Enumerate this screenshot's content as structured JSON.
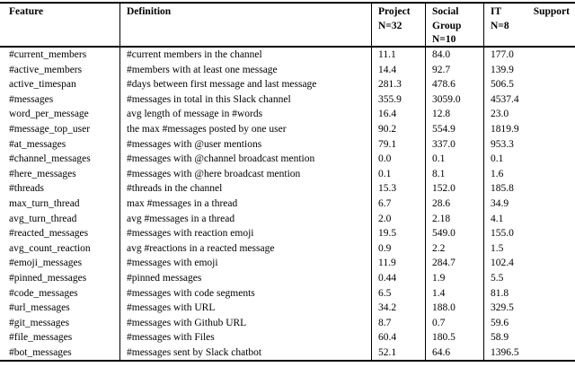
{
  "table": {
    "headers": {
      "feature": "Feature",
      "definition": "Definition",
      "project": {
        "line1": "Project",
        "line2": "N=32"
      },
      "social_group": {
        "line1": "Social",
        "line2": "Group",
        "line3": "N=10"
      },
      "it_support": {
        "word1": "IT",
        "word2": "Support",
        "line2": "N=8"
      }
    }
  },
  "chart_data": {
    "type": "table",
    "columns": [
      "Feature",
      "Definition",
      "Project N=32",
      "Social Group N=10",
      "IT Support N=8"
    ],
    "rows": [
      [
        "#current_members",
        "#current members in the channel",
        "11.1",
        "84.0",
        "177.0"
      ],
      [
        "#active_members",
        "#members with at least one message",
        "14.4",
        "92.7",
        "139.9"
      ],
      [
        "active_timespan",
        "#days between first message and last message",
        "281.3",
        "478.6",
        "506.5"
      ],
      [
        "#messages",
        "#messages in total in this Slack channel",
        "355.9",
        "3059.0",
        "4537.4"
      ],
      [
        "word_per_message",
        "avg length of message in #words",
        "16.4",
        "12.8",
        "23.0"
      ],
      [
        "#message_top_user",
        "the max #messages posted by one user",
        "90.2",
        "554.9",
        "1819.9"
      ],
      [
        "#at_messages",
        "#messages with @user mentions",
        "79.1",
        "337.0",
        "953.3"
      ],
      [
        "#channel_messages",
        "#messages with @channel broadcast mention",
        "0.0",
        "0.1",
        "0.1"
      ],
      [
        "#here_messages",
        "#messages with @here broadcast mention",
        "0.1",
        "8.1",
        "1.6"
      ],
      [
        "#threads",
        "#threads in the channel",
        "15.3",
        "152.0",
        "185.8"
      ],
      [
        "max_turn_thread",
        "max #messages in a thread",
        "6.7",
        "28.6",
        "34.9"
      ],
      [
        "avg_turn_thread",
        "avg #messages in a thread",
        "2.0",
        "2.18",
        "4.1"
      ],
      [
        "#reacted_messages",
        "#messages with reaction emoji",
        "19.5",
        "549.0",
        "155.0"
      ],
      [
        "avg_count_reaction",
        "avg #reactions in a reacted message",
        "0.9",
        "2.2",
        "1.5"
      ],
      [
        "#emoji_messages",
        "#messages with emoji",
        "11.9",
        "284.7",
        "102.4"
      ],
      [
        "#pinned_messages",
        "#pinned messages",
        "0.44",
        "1.9",
        "5.5"
      ],
      [
        "#code_messages",
        "#messages with code segments",
        "6.5",
        "1.4",
        "81.8"
      ],
      [
        "#url_messages",
        "#messages with URL",
        "34.2",
        "188.0",
        "329.5"
      ],
      [
        "#git_messages",
        "#messages with Github URL",
        "8.7",
        "0.7",
        "59.6"
      ],
      [
        "#file_messages",
        "#messages with Files",
        "60.4",
        "180.5",
        "58.9"
      ],
      [
        "#bot_messages",
        "#messages sent by Slack chatbot",
        "52.1",
        "64.6",
        "1396.5"
      ]
    ]
  }
}
